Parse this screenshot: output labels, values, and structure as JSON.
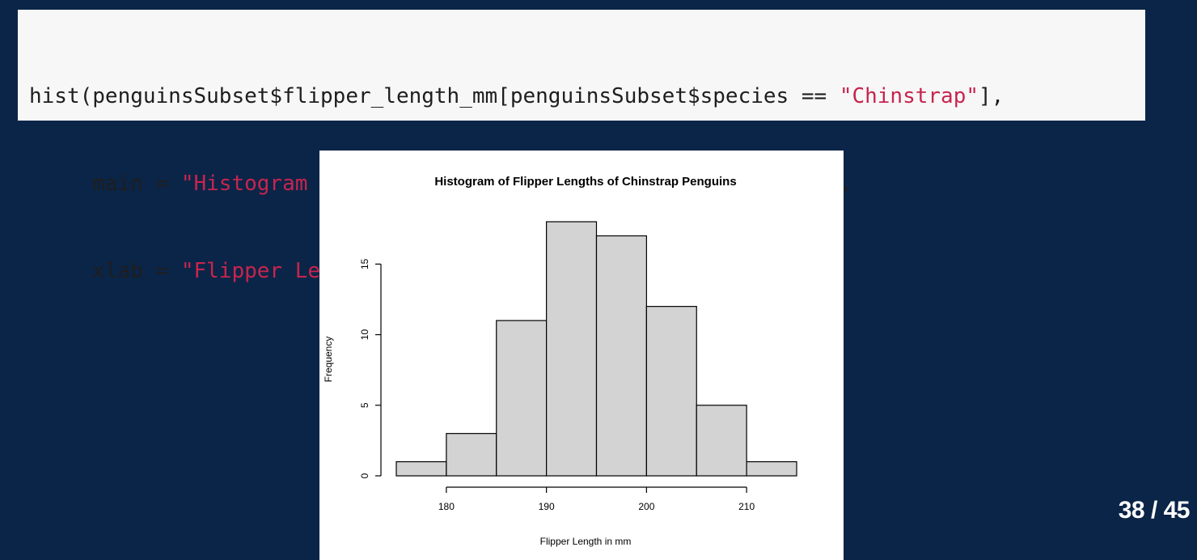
{
  "code": {
    "line1": {
      "prefix": "hist(penguinsSubset$flipper_length_mm[penguinsSubset$species == ",
      "string": "\"Chinstrap\"",
      "suffix": "],"
    },
    "line2": {
      "prefix": "     main = ",
      "string": "\"Histogram of Flipper Lengths of Chinstrap Penguins\"",
      "suffix": ","
    },
    "line3": {
      "prefix": "     xlab = ",
      "string": "\"Flipper Length in mm\"",
      "suffix": ")"
    }
  },
  "slide": {
    "number_label": "38 / 45"
  },
  "colors": {
    "background": "#0b2548",
    "code_background": "#f7f7f7",
    "code_string": "#c7254e",
    "bar_fill": "#d3d3d3"
  },
  "chart_data": {
    "type": "bar",
    "subtype": "histogram",
    "title": "Histogram of Flipper Lengths of Chinstrap Penguins",
    "xlabel": "Flipper Length in mm",
    "ylabel": "Frequency",
    "bins": [
      {
        "start": 175,
        "end": 180,
        "count": 1
      },
      {
        "start": 180,
        "end": 185,
        "count": 3
      },
      {
        "start": 185,
        "end": 190,
        "count": 11
      },
      {
        "start": 190,
        "end": 195,
        "count": 18
      },
      {
        "start": 195,
        "end": 200,
        "count": 17
      },
      {
        "start": 200,
        "end": 205,
        "count": 12
      },
      {
        "start": 205,
        "end": 210,
        "count": 5
      },
      {
        "start": 210,
        "end": 215,
        "count": 1
      }
    ],
    "xlim": [
      175,
      215
    ],
    "ylim": [
      0,
      18
    ],
    "xticks": [
      180,
      190,
      200,
      210
    ],
    "xtick_labels": [
      "180",
      "190",
      "200",
      "210"
    ],
    "yticks": [
      0,
      5,
      10,
      15
    ],
    "ytick_labels": [
      "0",
      "5",
      "10",
      "15"
    ],
    "grid": false,
    "legend": "none"
  }
}
